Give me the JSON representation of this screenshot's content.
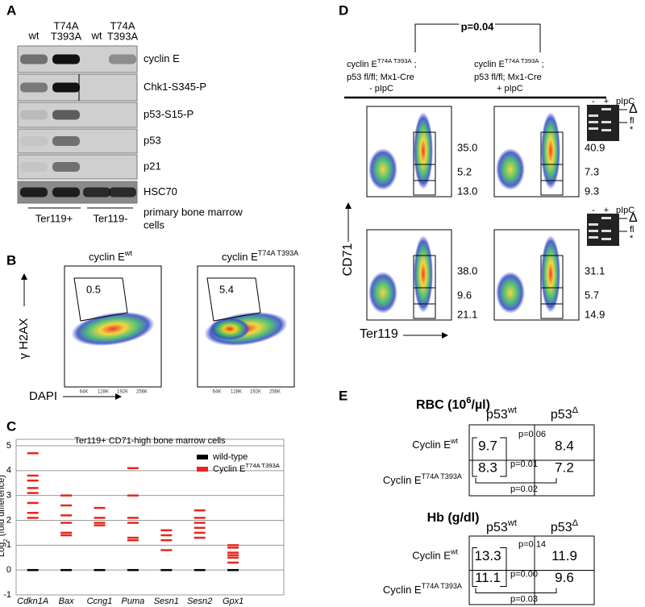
{
  "panel_a": {
    "label": "A",
    "columns": [
      [
        "wt"
      ],
      [
        "T74A",
        "T393A"
      ],
      [
        "wt"
      ],
      [
        "T74A",
        "T393A"
      ]
    ],
    "rows": [
      "cyclin E",
      "Chk1-S345-P",
      "p53-S15-P",
      "p53",
      "p21",
      "HSC70"
    ],
    "groups": [
      "Ter119+",
      "Ter119-"
    ],
    "caption": [
      "primary bone marrow",
      "cells"
    ]
  },
  "panel_b": {
    "label": "B",
    "plots": [
      {
        "title": "cyclin E",
        "superscript": "wt",
        "gate": "0.5"
      },
      {
        "title": "cyclin E",
        "superscript": "T74A T393A",
        "gate": "5.4"
      }
    ],
    "y_label": "γ H2AX",
    "x_label": "DAPI",
    "x_ticks": [
      "64K",
      "128K",
      "192K",
      "256K"
    ]
  },
  "panel_c": {
    "label": "C"
  },
  "chart_data": {
    "type": "strip",
    "title": "Ter119+ CD71-high bone marrow cells",
    "y_label": "Log",
    "y_label_sub": "2",
    "y_label_end": " (fold difference)",
    "categories": [
      "Cdkn1A",
      "Bax",
      "Ccng1",
      "Puma",
      "Sesn1",
      "Sesn2",
      "Gpx1"
    ],
    "series": [
      {
        "name": "wild-type",
        "color": "#000000",
        "values": [
          [
            0
          ],
          [
            0
          ],
          [
            0
          ],
          [
            0
          ],
          [
            0
          ],
          [
            0
          ],
          [
            0
          ]
        ]
      },
      {
        "name": "Cyclin E",
        "name_superscript": "T74A T393A",
        "color": "#e8261c",
        "values": [
          [
            4.7,
            3.8,
            3.6,
            3.3,
            3.1,
            2.7,
            2.3,
            2.1
          ],
          [
            3.0,
            2.6,
            2.2,
            1.9,
            1.5,
            1.4
          ],
          [
            2.5,
            2.1,
            1.9,
            1.8
          ],
          [
            4.1,
            3.0,
            2.1,
            1.9,
            1.3,
            1.2
          ],
          [
            1.6,
            1.4,
            1.2,
            0.8
          ],
          [
            2.4,
            2.1,
            1.9,
            1.7,
            1.5,
            1.3
          ],
          [
            1.0,
            0.9,
            0.7,
            0.6,
            0.5,
            0.3
          ]
        ]
      }
    ],
    "ylim": [
      -1,
      5
    ],
    "yticks": [
      -1,
      0,
      1,
      2,
      3,
      4,
      5
    ],
    "grid": true
  },
  "panel_d": {
    "label": "D",
    "p_value": "p=0.04",
    "columns": [
      {
        "line1": "cyclin E",
        "sup": "T74A T393A",
        "suffix": " ;",
        "line2": "p53 fl/fl; Mx1-Cre",
        "line3": "- pIpC"
      },
      {
        "line1": "cyclin E",
        "sup": "T74A T393A",
        "suffix": " ;",
        "line2": "p53 fl/fl; Mx1-Cre",
        "line3": "+ pIpC"
      }
    ],
    "gates": [
      [
        "35.0",
        "5.2",
        "13.0"
      ],
      [
        "40.9",
        "7.3",
        "9.3"
      ],
      [
        "38.0",
        "9.6",
        "21.1"
      ],
      [
        "31.1",
        "5.7",
        "14.9"
      ]
    ],
    "y_label": "CD71",
    "x_label": "Ter119",
    "gel_lanes": [
      "-",
      "+",
      "pIpC"
    ],
    "gel_bands": [
      "Δ",
      "fl",
      "*"
    ]
  },
  "panel_e": {
    "label": "E",
    "tables": [
      {
        "title": "RBC (10",
        "title_sup": "6",
        "title_end": "/µl)",
        "columns": [
          {
            "text": "p53",
            "sup": "wt"
          },
          {
            "text": "p53",
            "sup": "Δ"
          }
        ],
        "rows": [
          {
            "text": "Cyclin E",
            "sup": "wt"
          },
          {
            "text": "Cyclin E",
            "sup": "T74A T393A"
          }
        ],
        "values": [
          [
            "9.7",
            "8.4"
          ],
          [
            "8.3",
            "7.2"
          ]
        ],
        "p_values": [
          "p=0.06",
          "p=0.01",
          "p=0.02"
        ]
      },
      {
        "title": "Hb (g/dl)",
        "columns": [
          {
            "text": "p53",
            "sup": "wt"
          },
          {
            "text": "p53",
            "sup": "Δ"
          }
        ],
        "rows": [
          {
            "text": "Cyclin E",
            "sup": "wt"
          },
          {
            "text": "Cyclin E",
            "sup": "T74A T393A"
          }
        ],
        "values": [
          [
            "13.3",
            "11.9"
          ],
          [
            "11.1",
            "9.6"
          ]
        ],
        "p_values": [
          "p=0.14",
          "p=0.00",
          "p=0.03"
        ]
      }
    ]
  }
}
